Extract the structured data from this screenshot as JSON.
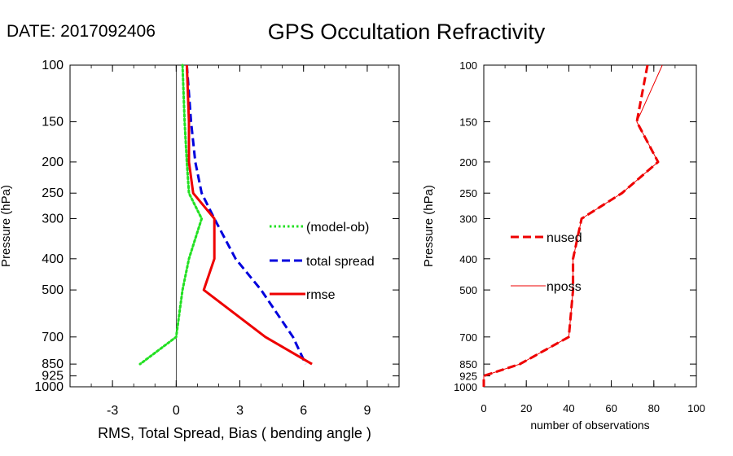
{
  "header": {
    "date_label": "DATE: 2017092406",
    "title": "GPS Occultation Refractivity"
  },
  "chart_data": [
    {
      "type": "line",
      "title": "GPS Occultation Refractivity",
      "xlabel": "RMS, Total Spread, Bias ( bending angle )",
      "ylabel": "Pressure (hPa)",
      "xlim": [
        -5,
        10.5
      ],
      "ylim": [
        1000,
        100
      ],
      "y_scale": "log",
      "y_inverted": true,
      "x_ticks": [
        -3,
        0,
        3,
        6,
        9
      ],
      "x_tick_labels": [
        "-3",
        "0",
        "3",
        "6",
        "9"
      ],
      "y_ticks": [
        100,
        150,
        200,
        250,
        300,
        400,
        500,
        700,
        850,
        925,
        1000
      ],
      "y_tick_labels": [
        "100",
        "150",
        "200",
        "250",
        "300",
        "400",
        "500",
        "700",
        "850",
        "925",
        "1000"
      ],
      "zero_line": 0,
      "legend_position": "right",
      "series": [
        {
          "name": "(model-ob)",
          "color": "#22e022",
          "style": "dotted",
          "points": [
            [
              0.3,
              100
            ],
            [
              0.4,
              150
            ],
            [
              0.5,
              200
            ],
            [
              0.6,
              250
            ],
            [
              1.2,
              300
            ],
            [
              0.6,
              400
            ],
            [
              0.3,
              500
            ],
            [
              0.0,
              700
            ],
            [
              -1.7,
              850
            ]
          ]
        },
        {
          "name": "total spread",
          "color": "#0000dd",
          "style": "dashed",
          "points": [
            [
              0.5,
              100
            ],
            [
              0.7,
              150
            ],
            [
              0.9,
              200
            ],
            [
              1.2,
              250
            ],
            [
              1.8,
              300
            ],
            [
              2.8,
              400
            ],
            [
              4.0,
              500
            ],
            [
              5.5,
              700
            ],
            [
              6.1,
              850
            ]
          ]
        },
        {
          "name": "rmse",
          "color": "#ee0000",
          "style": "solid",
          "points": [
            [
              0.5,
              100
            ],
            [
              0.6,
              150
            ],
            [
              0.6,
              200
            ],
            [
              0.8,
              250
            ],
            [
              1.8,
              300
            ],
            [
              1.8,
              400
            ],
            [
              1.3,
              500
            ],
            [
              4.2,
              700
            ],
            [
              6.4,
              850
            ]
          ]
        }
      ]
    },
    {
      "type": "line",
      "xlabel": "number of observations",
      "ylabel": "Pressure (hPa)",
      "xlim": [
        0,
        100
      ],
      "ylim": [
        1000,
        100
      ],
      "y_scale": "log",
      "y_inverted": true,
      "x_ticks": [
        0,
        20,
        40,
        60,
        80,
        100
      ],
      "x_tick_labels": [
        "0",
        "20",
        "40",
        "60",
        "80",
        "100"
      ],
      "y_ticks": [
        100,
        150,
        200,
        250,
        300,
        400,
        500,
        700,
        850,
        925,
        1000
      ],
      "y_tick_labels": [
        "100",
        "150",
        "200",
        "250",
        "300",
        "400",
        "500",
        "700",
        "850",
        "925",
        "1000"
      ],
      "legend_position": "left",
      "series": [
        {
          "name": "nused",
          "color": "#ee0000",
          "style": "dashed",
          "points": [
            [
              77,
              100
            ],
            [
              72,
              150
            ],
            [
              82,
              200
            ],
            [
              65,
              250
            ],
            [
              46,
              300
            ],
            [
              42,
              400
            ],
            [
              42,
              500
            ],
            [
              40,
              700
            ],
            [
              17,
              850
            ],
            [
              0,
              925
            ],
            [
              0,
              1000
            ]
          ]
        },
        {
          "name": "nposs",
          "color": "#ee0000",
          "style": "thin",
          "points": [
            [
              84,
              100
            ],
            [
              72,
              150
            ],
            [
              82,
              200
            ],
            [
              65,
              250
            ],
            [
              46,
              300
            ],
            [
              42,
              400
            ],
            [
              42,
              500
            ],
            [
              40,
              700
            ],
            [
              17,
              850
            ],
            [
              0,
              925
            ],
            [
              0,
              1000
            ]
          ]
        }
      ]
    }
  ]
}
